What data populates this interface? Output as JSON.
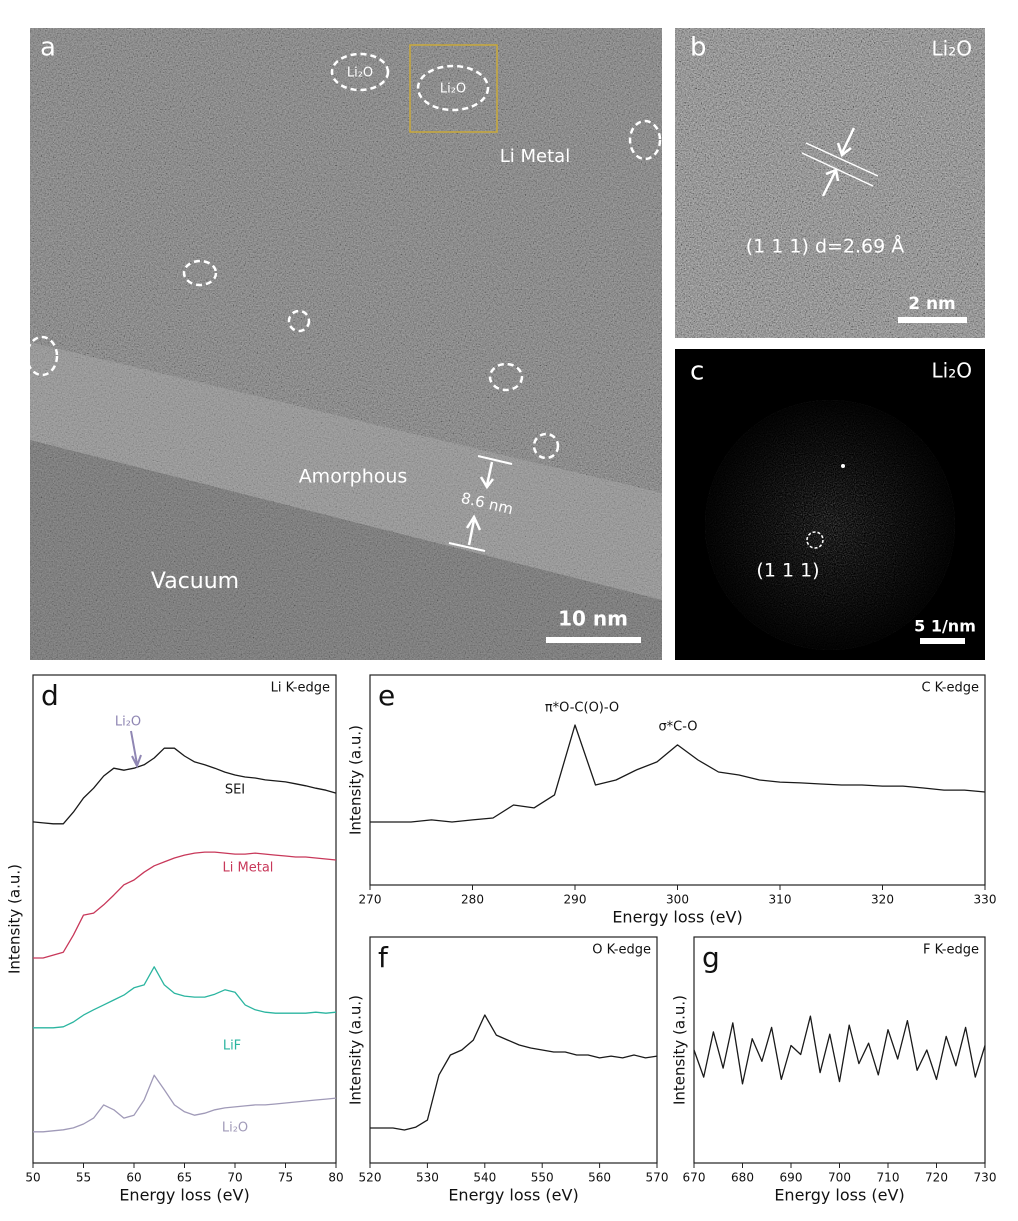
{
  "micrographs": {
    "a": {
      "panel_label": "a",
      "labels": [
        "Li₂O",
        "Li₂O",
        "Li Metal",
        "Amorphous",
        "Vacuum",
        "8.6 nm"
      ],
      "scale_bar": "10 nm"
    },
    "b": {
      "panel_label": "b",
      "labels": [
        "Li₂O",
        "(1 1 1) d=2.69 Å"
      ],
      "scale_bar": "2 nm"
    },
    "c": {
      "panel_label": "c",
      "labels": [
        "Li₂O",
        "(1 1 1)"
      ],
      "scale_bar": "5 1/nm"
    }
  },
  "chart_data": [
    {
      "type": "line",
      "panel_label": "d",
      "title": "Li K-edge",
      "xlabel": "Energy loss (eV)",
      "ylabel": "Intensity (a.u.)",
      "x": [
        50,
        51,
        52,
        53,
        54,
        55,
        56,
        57,
        58,
        59,
        60,
        61,
        62,
        63,
        64,
        65,
        66,
        67,
        68,
        69,
        70,
        71,
        72,
        73,
        74,
        75,
        76,
        77,
        78,
        79,
        80
      ],
      "xlim": [
        50,
        80
      ],
      "xticks": [
        50,
        55,
        60,
        65,
        70,
        75,
        80
      ],
      "ylim": [
        0,
        100
      ],
      "series": [
        {
          "name": "SEI",
          "color": "#1a1a1a",
          "values": [
            69.9,
            69.7,
            69.5,
            69.5,
            71.9,
            74.8,
            76.8,
            79.3,
            80.9,
            80.5,
            80.9,
            81.6,
            83.0,
            85.0,
            85.0,
            83.4,
            82.2,
            81.6,
            80.9,
            80.1,
            79.5,
            79.1,
            78.9,
            78.5,
            78.3,
            78.1,
            77.7,
            77.3,
            76.8,
            76.4,
            75.8
          ]
        },
        {
          "name": "Li Metal",
          "color": "#c8385a",
          "values": [
            42.0,
            42.0,
            42.6,
            43.2,
            46.7,
            50.8,
            51.2,
            52.9,
            54.9,
            57.0,
            58.0,
            59.6,
            60.9,
            61.7,
            62.5,
            63.1,
            63.5,
            63.7,
            63.7,
            63.5,
            63.3,
            63.3,
            63.5,
            63.3,
            63.1,
            62.9,
            62.7,
            62.7,
            62.5,
            62.3,
            62.1
          ]
        },
        {
          "name": "LiF",
          "color": "#2bb5a0",
          "values": [
            27.7,
            27.7,
            27.7,
            27.9,
            28.9,
            30.3,
            31.4,
            32.4,
            33.4,
            34.4,
            35.9,
            36.5,
            40.2,
            36.5,
            34.8,
            34.2,
            34.0,
            34.0,
            34.6,
            35.5,
            35.0,
            32.4,
            31.4,
            30.9,
            30.7,
            30.7,
            30.7,
            30.7,
            30.9,
            30.7,
            30.9
          ]
        },
        {
          "name": "Li₂O",
          "color": "#a09ab8",
          "values": [
            6.4,
            6.4,
            6.6,
            6.8,
            7.2,
            8.0,
            9.2,
            11.9,
            10.9,
            9.2,
            9.8,
            12.9,
            18.0,
            15.0,
            11.9,
            10.5,
            9.8,
            10.2,
            10.9,
            11.3,
            11.5,
            11.7,
            11.9,
            11.9,
            12.1,
            12.3,
            12.5,
            12.7,
            12.9,
            13.1,
            13.3
          ]
        }
      ],
      "annotations": [
        "Li₂O"
      ]
    },
    {
      "type": "line",
      "panel_label": "e",
      "title": "C K-edge",
      "xlabel": "Energy loss (eV)",
      "ylabel": "Intensity (a.u.)",
      "x": [
        270,
        272,
        274,
        276,
        278,
        280,
        282,
        284,
        286,
        288,
        290,
        292,
        294,
        296,
        298,
        300,
        302,
        304,
        306,
        308,
        310,
        312,
        314,
        316,
        318,
        320,
        322,
        324,
        326,
        328,
        330
      ],
      "xlim": [
        270,
        330
      ],
      "xticks": [
        270,
        280,
        290,
        300,
        310,
        320,
        330
      ],
      "ylim": [
        0,
        100
      ],
      "color": "#1a1a1a",
      "values": [
        30.0,
        30.0,
        30.0,
        31.0,
        30.0,
        31.0,
        31.9,
        38.1,
        36.7,
        42.9,
        76.2,
        47.6,
        50.0,
        54.8,
        58.6,
        66.7,
        59.5,
        53.8,
        52.4,
        50.0,
        49.0,
        48.6,
        48.1,
        47.6,
        47.6,
        47.1,
        47.1,
        46.2,
        45.2,
        45.2,
        44.3
      ],
      "annotations": [
        "π*O-C(O)-O",
        "σ*C-O"
      ]
    },
    {
      "type": "line",
      "panel_label": "f",
      "title": "O K-edge",
      "xlabel": "Energy loss (eV)",
      "ylabel": "Intensity (a.u.)",
      "x": [
        520,
        522,
        524,
        526,
        528,
        530,
        532,
        534,
        536,
        538,
        540,
        542,
        544,
        546,
        548,
        550,
        552,
        554,
        556,
        558,
        560,
        562,
        564,
        566,
        568,
        570
      ],
      "xlim": [
        520,
        570
      ],
      "xticks": [
        520,
        530,
        540,
        550,
        560,
        570
      ],
      "ylim": [
        0,
        100
      ],
      "color": "#1a1a1a",
      "values": [
        15.5,
        15.5,
        15.5,
        14.6,
        15.9,
        19.0,
        38.9,
        47.8,
        50.0,
        54.4,
        65.5,
        56.6,
        54.4,
        52.2,
        50.9,
        50.0,
        49.1,
        49.1,
        47.8,
        47.8,
        46.5,
        47.3,
        46.5,
        47.8,
        46.5,
        47.3
      ]
    },
    {
      "type": "line",
      "panel_label": "g",
      "title": "F K-edge",
      "xlabel": "Energy loss (eV)",
      "ylabel": "Intensity (a.u.)",
      "x": [
        670,
        672,
        674,
        676,
        678,
        680,
        682,
        684,
        686,
        688,
        690,
        692,
        694,
        696,
        698,
        700,
        702,
        704,
        706,
        708,
        710,
        712,
        714,
        716,
        718,
        720,
        722,
        724,
        726,
        728,
        730
      ],
      "xlim": [
        670,
        730
      ],
      "xticks": [
        670,
        680,
        690,
        700,
        710,
        720,
        730
      ],
      "ylim": [
        0,
        100
      ],
      "color": "#1a1a1a",
      "values": [
        50,
        38,
        58,
        42,
        62,
        35,
        55,
        45,
        60,
        37,
        52,
        48,
        65,
        40,
        57,
        36,
        61,
        44,
        53,
        39,
        59,
        46,
        63,
        41,
        50,
        37,
        56,
        43,
        60,
        38,
        52
      ]
    }
  ]
}
